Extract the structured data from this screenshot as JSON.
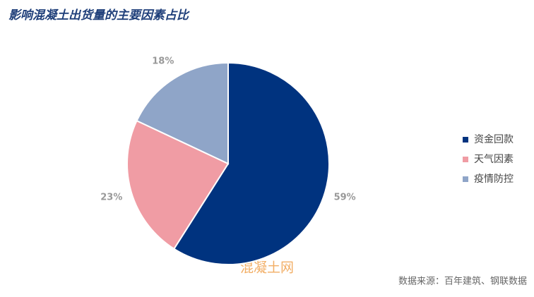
{
  "chart_data": {
    "type": "pie",
    "title": "影响混凝土出货量的主要因素占比",
    "categories": [
      "资金回款",
      "天气因素",
      "疫情防控"
    ],
    "values": [
      59,
      23,
      18
    ],
    "value_labels": [
      "59%",
      "23%",
      "18%"
    ],
    "colors": [
      "#00337f",
      "#f09ca4",
      "#8fa5c8"
    ],
    "legend": "right",
    "source": "数据来源：百年建筑、钢联数据",
    "watermark": "混凝土网"
  }
}
